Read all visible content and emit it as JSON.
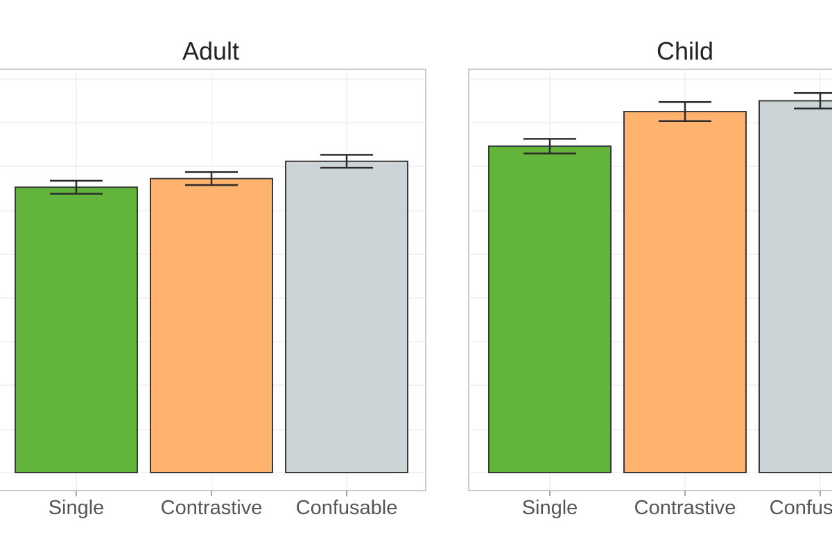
{
  "chart_data": [
    {
      "type": "bar",
      "title": "Adult",
      "categories": [
        "Single",
        "Contrastive",
        "Confusable"
      ],
      "values": [
        0.66,
        0.68,
        0.72
      ],
      "errors": [
        0.015,
        0.015,
        0.015
      ],
      "colors": [
        "#63b43a",
        "#ffb36e",
        "#ccd4d8"
      ],
      "ylim": [
        0,
        0.92
      ],
      "grid": true,
      "xlabel": "",
      "ylabel": ""
    },
    {
      "type": "bar",
      "title": "Child",
      "categories": [
        "Single",
        "Contrastive",
        "Confusable"
      ],
      "values": [
        0.755,
        0.835,
        0.86
      ],
      "errors": [
        0.017,
        0.022,
        0.018
      ],
      "colors": [
        "#63b43a",
        "#ffb36e",
        "#ccd4d8"
      ],
      "ylim": [
        0,
        0.92
      ],
      "grid": true,
      "xlabel": "",
      "ylabel": ""
    }
  ]
}
